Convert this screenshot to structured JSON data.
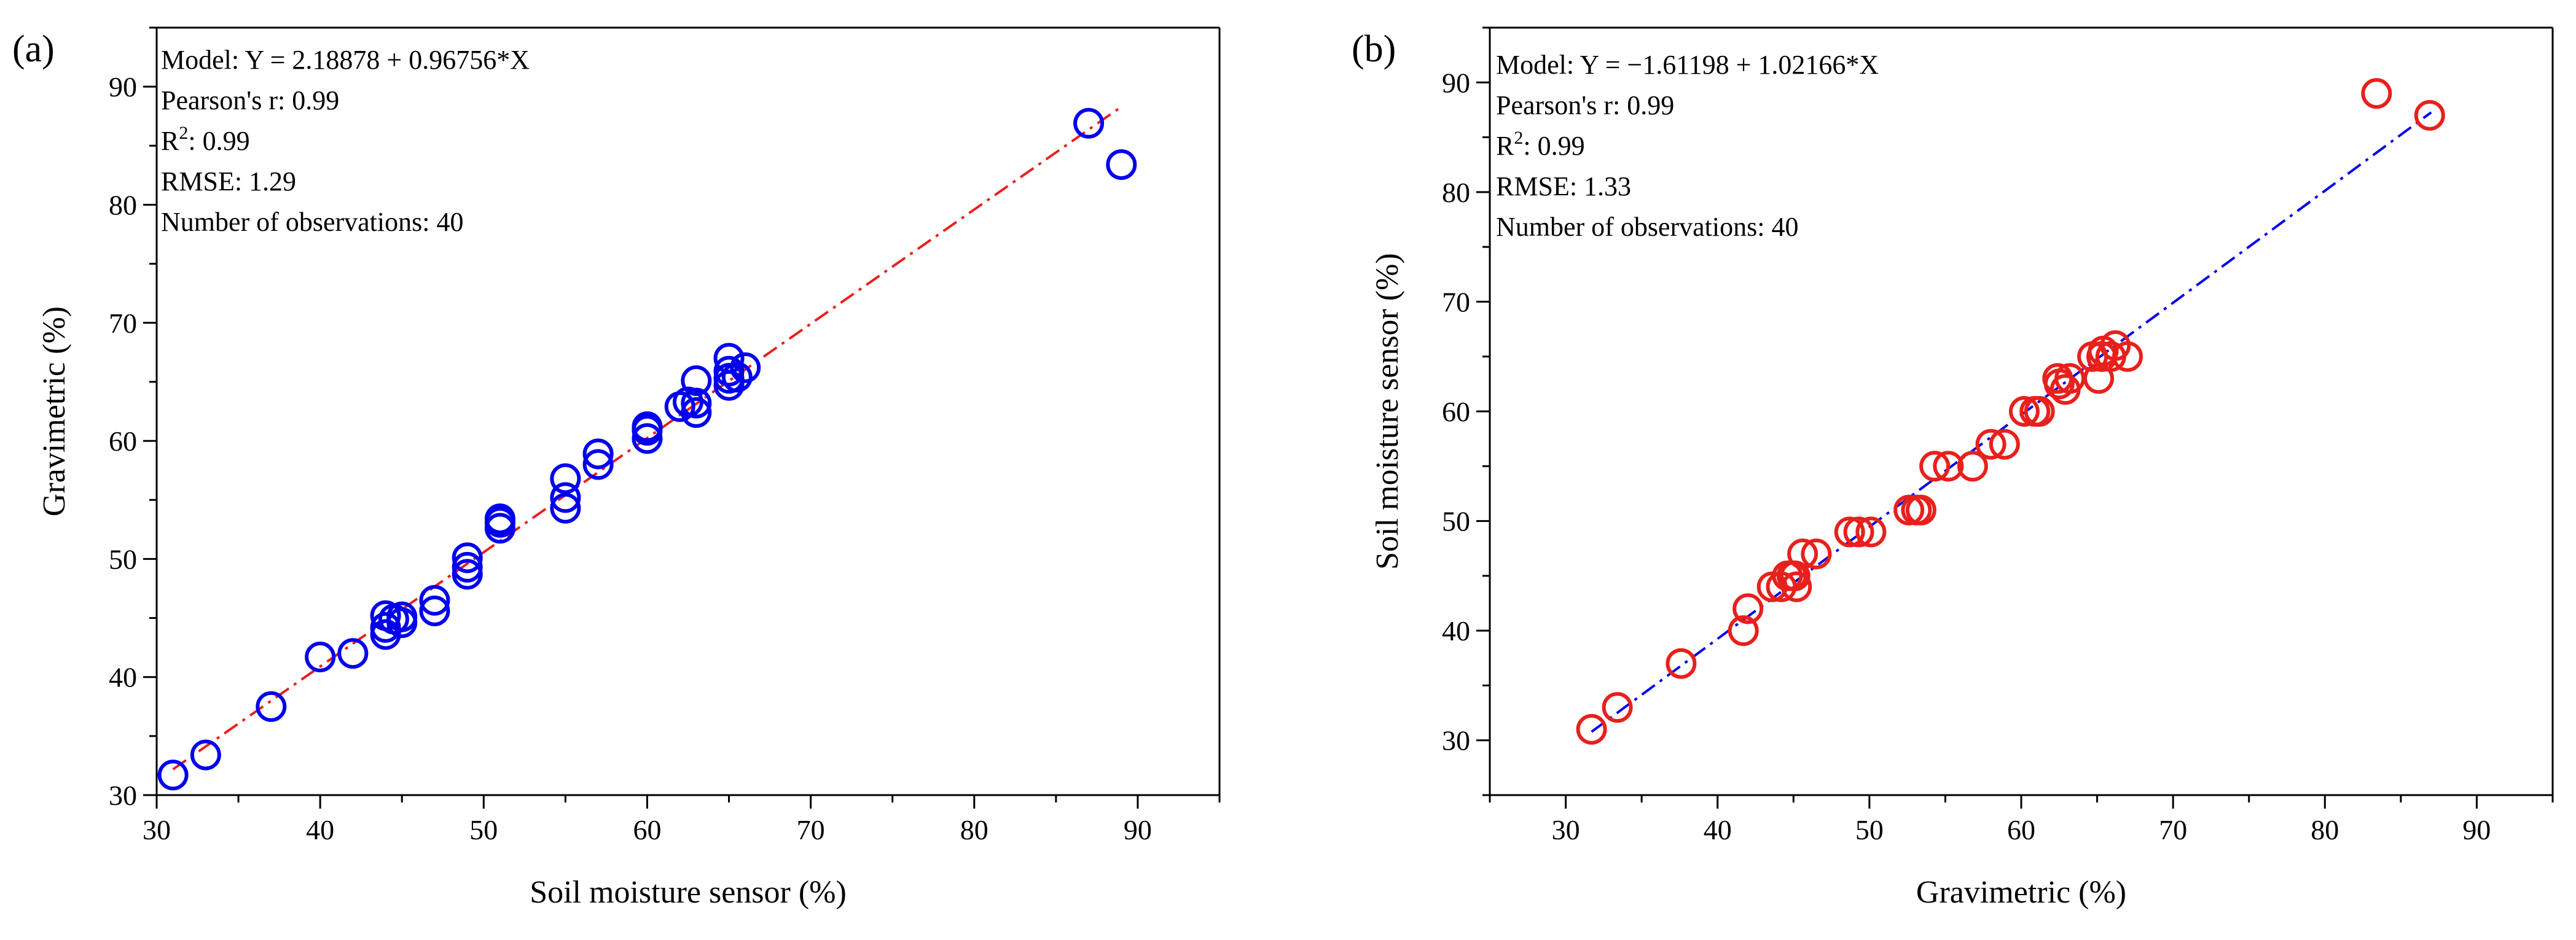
{
  "chart_data": [
    {
      "type": "scatter",
      "panel_label": "(a)",
      "xlabel": "Soil moisture sensor (%)",
      "ylabel": "Gravimetric (%)",
      "xlim": [
        30,
        95
      ],
      "ylim": [
        30,
        95
      ],
      "xticks": [
        30,
        40,
        50,
        60,
        70,
        80,
        90
      ],
      "yticks": [
        30,
        40,
        50,
        60,
        70,
        80,
        90
      ],
      "marker_color": "#0000ee",
      "fit_color": "#e8201c",
      "fit": {
        "intercept": 2.18878,
        "slope": 0.96756,
        "x_range": [
          31,
          89
        ]
      },
      "stats": {
        "model": "Model: Y = 2.18878 + 0.96756*X",
        "pearson": "Pearson's r: 0.99",
        "r2_prefix": "R",
        "r2_sup": "2",
        "r2_value": ": 0.99",
        "rmse": "RMSE: 1.29",
        "n_obs": "Number of observations: 40"
      },
      "points": [
        [
          31,
          31.7
        ],
        [
          33,
          33.4
        ],
        [
          37,
          37.5
        ],
        [
          40,
          41.7
        ],
        [
          42,
          42.0
        ],
        [
          44,
          43.6
        ],
        [
          44,
          44.2
        ],
        [
          44,
          45.2
        ],
        [
          45,
          44.6
        ],
        [
          45,
          45.1
        ],
        [
          47,
          45.6
        ],
        [
          47,
          46.5
        ],
        [
          49,
          48.7
        ],
        [
          49,
          49.3
        ],
        [
          49,
          50.1
        ],
        [
          51,
          52.6
        ],
        [
          51,
          53.1
        ],
        [
          51,
          53.4
        ],
        [
          55,
          54.3
        ],
        [
          55,
          55.2
        ],
        [
          55,
          56.8
        ],
        [
          57,
          58.0
        ],
        [
          57,
          58.9
        ],
        [
          60,
          60.2
        ],
        [
          60,
          60.9
        ],
        [
          60,
          61.2
        ],
        [
          62,
          62.9
        ],
        [
          63,
          62.4
        ],
        [
          63,
          63.2
        ],
        [
          63,
          65.1
        ],
        [
          65,
          64.7
        ],
        [
          65,
          65.3
        ],
        [
          65,
          65.9
        ],
        [
          65,
          67.0
        ],
        [
          65.5,
          65.4
        ],
        [
          66,
          66.2
        ],
        [
          87,
          86.9
        ],
        [
          89,
          83.4
        ],
        [
          62.5,
          63.3
        ],
        [
          44.5,
          44.9
        ]
      ]
    },
    {
      "type": "scatter",
      "panel_label": "(b)",
      "xlabel": "Gravimetric (%)",
      "ylabel": "Soil moisture sensor (%)",
      "xlim": [
        25,
        95
      ],
      "ylim": [
        25,
        95
      ],
      "xticks": [
        30,
        40,
        50,
        60,
        70,
        80,
        90
      ],
      "yticks": [
        30,
        40,
        50,
        60,
        70,
        80,
        90
      ],
      "marker_color": "#e8201c",
      "fit_color": "#0000ee",
      "fit": {
        "intercept": -1.61198,
        "slope": 1.02166,
        "x_range": [
          31.7,
          87
        ]
      },
      "stats": {
        "model": "Model: Y = −1.61198 + 1.02166*X",
        "pearson": "Pearson's r: 0.99",
        "r2_prefix": "R",
        "r2_sup": "2",
        "r2_value": ": 0.99",
        "rmse": "RMSE: 1.33",
        "n_obs": "Number of observations: 40"
      },
      "points": [
        [
          31.7,
          31
        ],
        [
          33.4,
          33
        ],
        [
          37.6,
          37
        ],
        [
          41.7,
          40
        ],
        [
          42.0,
          42
        ],
        [
          43.6,
          44
        ],
        [
          44.2,
          44
        ],
        [
          45.2,
          44
        ],
        [
          44.6,
          45
        ],
        [
          45.1,
          45
        ],
        [
          45.6,
          47
        ],
        [
          46.5,
          47
        ],
        [
          48.7,
          49
        ],
        [
          49.3,
          49
        ],
        [
          50.1,
          49
        ],
        [
          52.6,
          51
        ],
        [
          53.1,
          51
        ],
        [
          53.4,
          51
        ],
        [
          54.3,
          55
        ],
        [
          55.2,
          55
        ],
        [
          56.8,
          55
        ],
        [
          58.0,
          57
        ],
        [
          58.9,
          57
        ],
        [
          60.2,
          60
        ],
        [
          60.9,
          60
        ],
        [
          61.2,
          60
        ],
        [
          62.9,
          62
        ],
        [
          62.4,
          63
        ],
        [
          63.2,
          63
        ],
        [
          65.1,
          63
        ],
        [
          64.7,
          65
        ],
        [
          65.3,
          65
        ],
        [
          65.9,
          65
        ],
        [
          67.0,
          65
        ],
        [
          65.4,
          65.5
        ],
        [
          66.2,
          66
        ],
        [
          86.9,
          87
        ],
        [
          83.4,
          89
        ],
        [
          62.5,
          62.5
        ],
        [
          44.9,
          45
        ]
      ]
    }
  ]
}
